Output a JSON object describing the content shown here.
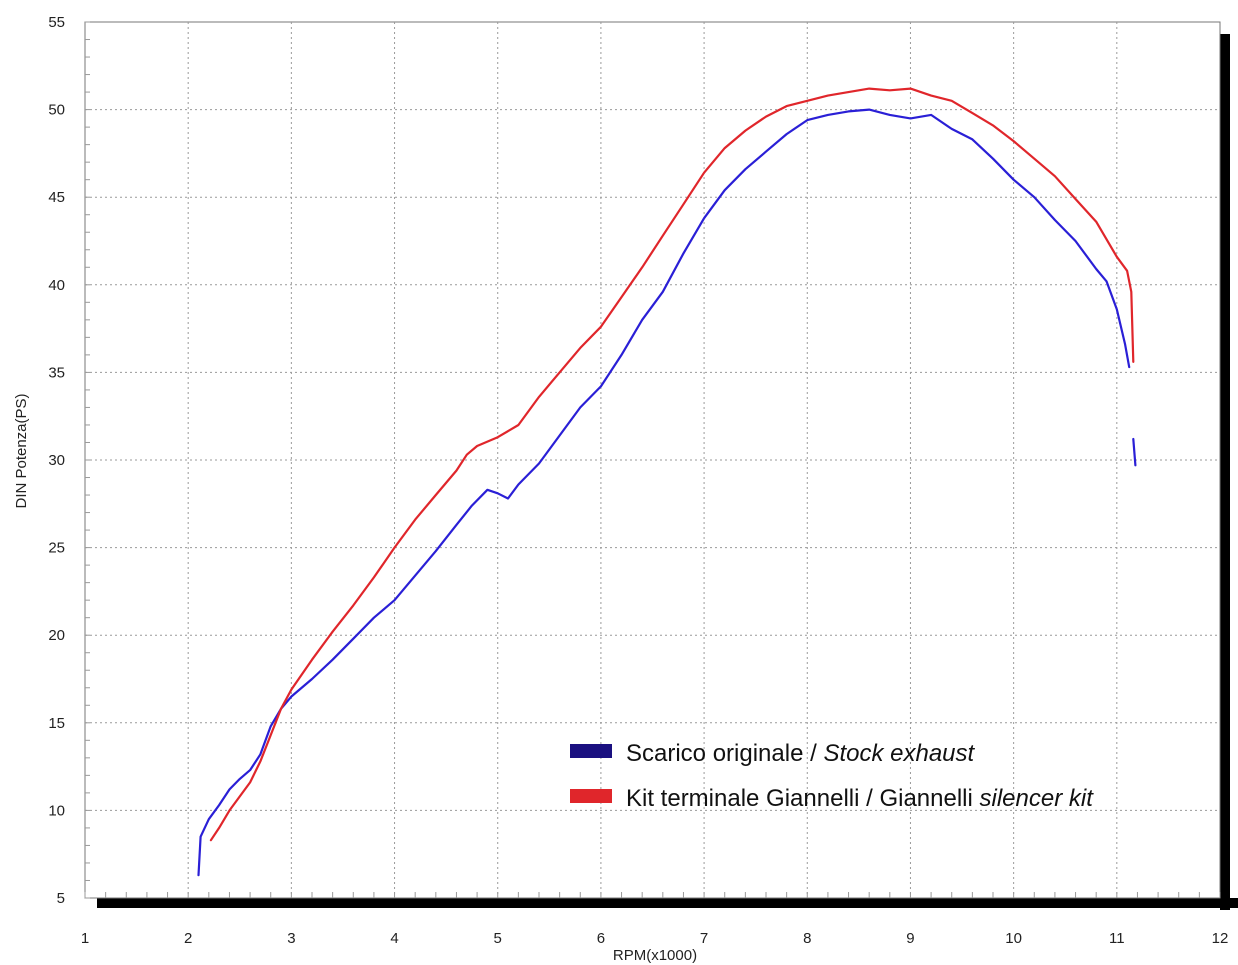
{
  "chart_data": {
    "type": "line",
    "xlabel": "RPM(x1000)",
    "ylabel": "DIN Potenza(PS)",
    "xlim": [
      1,
      12
    ],
    "ylim": [
      5,
      55
    ],
    "x_ticks": [
      1,
      2,
      3,
      4,
      5,
      6,
      7,
      8,
      9,
      10,
      11,
      12
    ],
    "y_ticks": [
      5,
      10,
      15,
      20,
      25,
      30,
      35,
      40,
      45,
      50,
      55
    ],
    "grid": true,
    "legend_position": "lower-right",
    "series": [
      {
        "name": "Scarico originale",
        "name_suffix": "Stock exhaust",
        "color": "#2a1fd6",
        "legend_color": "#1a1080",
        "points": [
          [
            2.1,
            6.3
          ],
          [
            2.12,
            8.5
          ],
          [
            2.2,
            9.5
          ],
          [
            2.3,
            10.3
          ],
          [
            2.4,
            11.2
          ],
          [
            2.5,
            11.8
          ],
          [
            2.6,
            12.3
          ],
          [
            2.7,
            13.2
          ],
          [
            2.8,
            14.8
          ],
          [
            2.9,
            15.8
          ],
          [
            3.0,
            16.5
          ],
          [
            3.2,
            17.5
          ],
          [
            3.4,
            18.6
          ],
          [
            3.6,
            19.8
          ],
          [
            3.8,
            21.0
          ],
          [
            4.0,
            22.0
          ],
          [
            4.2,
            23.4
          ],
          [
            4.4,
            24.8
          ],
          [
            4.6,
            26.3
          ],
          [
            4.75,
            27.4
          ],
          [
            4.9,
            28.3
          ],
          [
            5.0,
            28.1
          ],
          [
            5.1,
            27.8
          ],
          [
            5.2,
            28.6
          ],
          [
            5.4,
            29.8
          ],
          [
            5.6,
            31.4
          ],
          [
            5.8,
            33.0
          ],
          [
            6.0,
            34.2
          ],
          [
            6.2,
            36.0
          ],
          [
            6.4,
            38.0
          ],
          [
            6.6,
            39.6
          ],
          [
            6.8,
            41.8
          ],
          [
            7.0,
            43.8
          ],
          [
            7.2,
            45.4
          ],
          [
            7.4,
            46.6
          ],
          [
            7.6,
            47.6
          ],
          [
            7.8,
            48.6
          ],
          [
            8.0,
            49.4
          ],
          [
            8.2,
            49.7
          ],
          [
            8.4,
            49.9
          ],
          [
            8.6,
            50.0
          ],
          [
            8.8,
            49.7
          ],
          [
            9.0,
            49.5
          ],
          [
            9.2,
            49.7
          ],
          [
            9.4,
            48.9
          ],
          [
            9.6,
            48.3
          ],
          [
            9.8,
            47.2
          ],
          [
            10.0,
            46.0
          ],
          [
            10.2,
            45.0
          ],
          [
            10.4,
            43.7
          ],
          [
            10.6,
            42.5
          ],
          [
            10.8,
            40.9
          ],
          [
            10.9,
            40.2
          ],
          [
            11.0,
            38.6
          ],
          [
            11.08,
            36.6
          ],
          [
            11.12,
            35.3
          ]
        ],
        "tail_points": [
          [
            11.16,
            31.2
          ],
          [
            11.18,
            29.7
          ]
        ]
      },
      {
        "name": "Kit terminale Giannelli / Giannelli",
        "name_suffix": "silencer kit",
        "color": "#e0262b",
        "legend_color": "#e0262b",
        "points": [
          [
            2.22,
            8.3
          ],
          [
            2.3,
            9.0
          ],
          [
            2.4,
            10.0
          ],
          [
            2.5,
            10.8
          ],
          [
            2.6,
            11.6
          ],
          [
            2.7,
            12.8
          ],
          [
            2.8,
            14.3
          ],
          [
            2.9,
            15.8
          ],
          [
            3.0,
            16.9
          ],
          [
            3.2,
            18.6
          ],
          [
            3.4,
            20.2
          ],
          [
            3.6,
            21.7
          ],
          [
            3.8,
            23.3
          ],
          [
            4.0,
            25.0
          ],
          [
            4.2,
            26.6
          ],
          [
            4.4,
            28.0
          ],
          [
            4.6,
            29.4
          ],
          [
            4.7,
            30.3
          ],
          [
            4.8,
            30.8
          ],
          [
            5.0,
            31.3
          ],
          [
            5.2,
            32.0
          ],
          [
            5.4,
            33.6
          ],
          [
            5.6,
            35.0
          ],
          [
            5.8,
            36.4
          ],
          [
            6.0,
            37.6
          ],
          [
            6.2,
            39.3
          ],
          [
            6.4,
            41.0
          ],
          [
            6.6,
            42.8
          ],
          [
            6.8,
            44.6
          ],
          [
            7.0,
            46.4
          ],
          [
            7.2,
            47.8
          ],
          [
            7.4,
            48.8
          ],
          [
            7.6,
            49.6
          ],
          [
            7.8,
            50.2
          ],
          [
            8.0,
            50.5
          ],
          [
            8.2,
            50.8
          ],
          [
            8.4,
            51.0
          ],
          [
            8.6,
            51.2
          ],
          [
            8.8,
            51.1
          ],
          [
            9.0,
            51.2
          ],
          [
            9.2,
            50.8
          ],
          [
            9.4,
            50.5
          ],
          [
            9.6,
            49.8
          ],
          [
            9.8,
            49.1
          ],
          [
            10.0,
            48.2
          ],
          [
            10.2,
            47.2
          ],
          [
            10.4,
            46.2
          ],
          [
            10.6,
            44.9
          ],
          [
            10.8,
            43.6
          ],
          [
            11.0,
            41.6
          ],
          [
            11.1,
            40.8
          ],
          [
            11.14,
            39.6
          ],
          [
            11.16,
            35.6
          ]
        ]
      }
    ]
  }
}
